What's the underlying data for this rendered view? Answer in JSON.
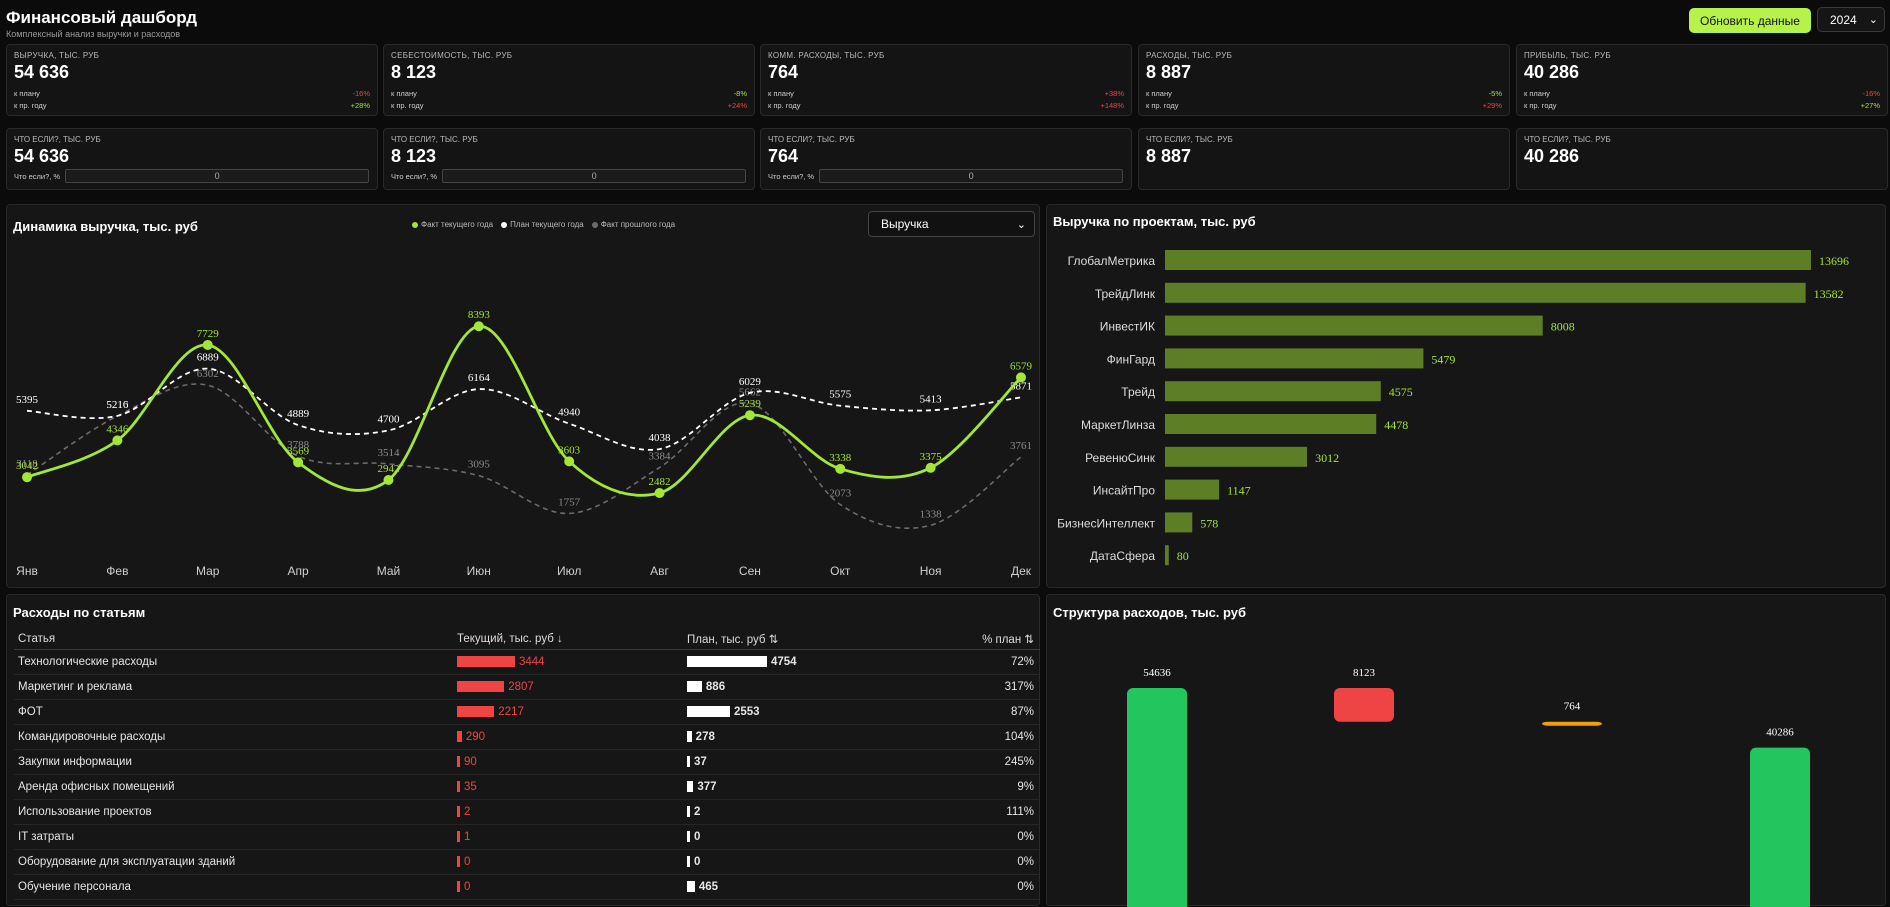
{
  "header": {
    "title": "Финансовый дашборд",
    "subtitle": "Комплексный анализ выручки и расходов",
    "refresh_label": "Обновить данные",
    "year": "2024"
  },
  "kpis": [
    {
      "label": "ВЫРУЧКА, ТЫС. РУБ",
      "value": "54 636",
      "plan_label": "к плану",
      "plan_delta": "-16%",
      "plan_neg": true,
      "py_label": "к пр. году",
      "py_delta": "+28%",
      "py_neg": false
    },
    {
      "label": "СЕБЕСТОИМОСТЬ, ТЫС. РУБ",
      "value": "8 123",
      "plan_label": "к плану",
      "plan_delta": "-8%",
      "plan_neg": false,
      "py_label": "к пр. году",
      "py_delta": "+24%",
      "py_neg": true
    },
    {
      "label": "КОММ. РАСХОДЫ, ТЫС. РУБ",
      "value": "764",
      "plan_label": "к плану",
      "plan_delta": "+38%",
      "plan_neg": true,
      "py_label": "к пр. году",
      "py_delta": "+148%",
      "py_neg": true
    },
    {
      "label": "РАСХОДЫ, ТЫС. РУБ",
      "value": "8 887",
      "plan_label": "к плану",
      "plan_delta": "-5%",
      "plan_neg": false,
      "py_label": "к пр. году",
      "py_delta": "+29%",
      "py_neg": true
    },
    {
      "label": "ПРИБЫЛЬ, ТЫС. РУБ",
      "value": "40 286",
      "plan_label": "к плану",
      "plan_delta": "-16%",
      "plan_neg": true,
      "py_label": "к пр. году",
      "py_delta": "+27%",
      "py_neg": false
    }
  ],
  "whatif": [
    {
      "label": "ЧТО ЕСЛИ?, ТЫС. РУБ",
      "value": "54 636",
      "input_label": "Что если?, %",
      "input_value": "0",
      "has_input": true
    },
    {
      "label": "ЧТО ЕСЛИ?, ТЫС. РУБ",
      "value": "8 123",
      "input_label": "Что если?, %",
      "input_value": "0",
      "has_input": true
    },
    {
      "label": "ЧТО ЕСЛИ?, ТЫС. РУБ",
      "value": "764",
      "input_label": "Что если?, %",
      "input_value": "0",
      "has_input": true
    },
    {
      "label": "ЧТО ЕСЛИ?, ТЫС. РУБ",
      "value": "8 887",
      "has_input": false
    },
    {
      "label": "ЧТО ЕСЛИ?, ТЫС. РУБ",
      "value": "40 286",
      "has_input": false
    }
  ],
  "dynamics": {
    "title": "Динамика выручка, тыс. руб",
    "selected_metric": "Выручка",
    "colors": {
      "fact": "#a3e635",
      "plan": "#ffffff",
      "prev": "#6b6b6b"
    },
    "chart_data": {
      "type": "line",
      "x": [
        "Янв",
        "Фев",
        "Мар",
        "Апр",
        "Май",
        "Июн",
        "Июл",
        "Авг",
        "Сен",
        "Окт",
        "Ноя",
        "Дек"
      ],
      "series": [
        {
          "name": "Факт текущего года",
          "values": [
            3042,
            4346,
            7729,
            3569,
            2942,
            8393,
            3603,
            2482,
            5239,
            3338,
            3375,
            6579
          ]
        },
        {
          "name": "План текущего года",
          "values": [
            5395,
            5216,
            6889,
            4889,
            4700,
            6164,
            4940,
            4038,
            6029,
            5575,
            5413,
            5871
          ]
        },
        {
          "name": "Факт прошлого года",
          "values": [
            3118,
            5210,
            6302,
            3788,
            3514,
            3095,
            1757,
            3384,
            5662,
            2073,
            1338,
            3761
          ]
        }
      ],
      "ylim": [
        0,
        9500
      ]
    }
  },
  "projects": {
    "title": "Выручка по проектам, тыс. руб",
    "bar_color": "#5d7e25",
    "chart_data": {
      "type": "bar",
      "categories": [
        "ГлобалМетрика",
        "ТрейдЛинк",
        "ИнвестИК",
        "ФинГард",
        "Трейд",
        "МаркетЛинза",
        "РевенюСинк",
        "ИнсайтПро",
        "БизнесИнтеллект",
        "ДатаСфера"
      ],
      "values": [
        13696,
        13582,
        8008,
        5479,
        4575,
        4478,
        3012,
        1147,
        578,
        80
      ]
    }
  },
  "expenses": {
    "title": "Расходы по статьям",
    "headers": {
      "item": "Статья",
      "current": "Текущий, тыс. руб ↓",
      "plan": "План, тыс. руб ⇅",
      "pct": "% план ⇅"
    },
    "rows": [
      {
        "name": "Технологические расходы",
        "current": 3444,
        "plan": 4754,
        "pct": "72%",
        "over": false
      },
      {
        "name": "Маркетинг и реклама",
        "current": 2807,
        "plan": 886,
        "pct": "317%",
        "over": true
      },
      {
        "name": "ФОТ",
        "current": 2217,
        "plan": 2553,
        "pct": "87%",
        "over": false
      },
      {
        "name": "Командировочные расходы",
        "current": 290,
        "plan": 278,
        "pct": "104%",
        "over": true
      },
      {
        "name": "Закупки информации",
        "current": 90,
        "plan": 37,
        "pct": "245%",
        "over": true
      },
      {
        "name": "Аренда офисных помещений",
        "current": 35,
        "plan": 377,
        "pct": "9%",
        "over": false
      },
      {
        "name": "Использование проектов",
        "current": 2,
        "plan": 2,
        "pct": "111%",
        "over": true
      },
      {
        "name": "IT затраты",
        "current": 1,
        "plan": 0,
        "pct": "0%",
        "over": false
      },
      {
        "name": "Оборудование для эксплуатации зданий",
        "current": 0,
        "plan": 0,
        "pct": "0%",
        "over": false
      },
      {
        "name": "Обучение персонала",
        "current": 0,
        "plan": 465,
        "pct": "0%",
        "over": false
      }
    ]
  },
  "structure": {
    "title": "Структура расходов, тыс. руб",
    "chart_data": {
      "type": "bar",
      "bars": [
        {
          "value": 54636,
          "start": 0,
          "end": 54636,
          "color": "#22c55e"
        },
        {
          "value": 8123,
          "start": 54636,
          "end": 46513,
          "color": "#ef4444"
        },
        {
          "value": 764,
          "start": 46513,
          "end": 45749,
          "color": "#f59e0b"
        },
        {
          "value": 40286,
          "start": 0,
          "end": 40286,
          "color": "#22c55e"
        }
      ]
    }
  }
}
